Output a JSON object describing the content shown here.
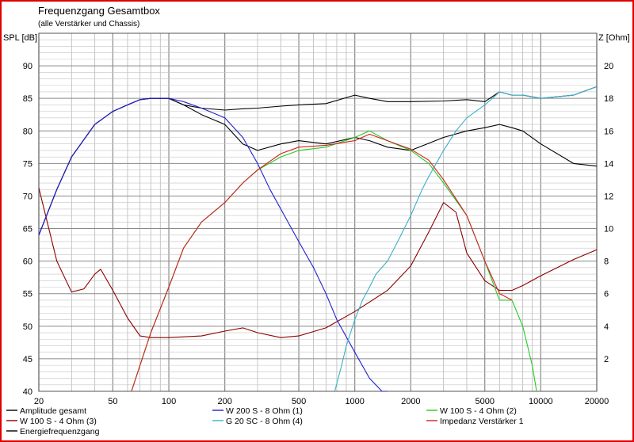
{
  "chart_data": {
    "type": "line",
    "title": "Frequenzgang Gesamtbox",
    "subtitle": "(alle Verstärker und Chassis)",
    "ylabel_left": "SPL [dB]",
    "ylabel_right": "Z [Ohm]",
    "x_scale": "log",
    "xlim": [
      20,
      20000
    ],
    "ylim_left": [
      40,
      95
    ],
    "ylim_right": [
      0,
      22
    ],
    "x_ticks": [
      20,
      50,
      100,
      200,
      500,
      1000,
      2000,
      5000,
      10000,
      20000
    ],
    "x_tick_labels": [
      "20",
      "50",
      "100",
      "200",
      "500",
      "1000",
      "2000",
      "5000",
      "10000",
      "20000"
    ],
    "y_left_ticks": [
      40,
      45,
      50,
      55,
      60,
      65,
      70,
      75,
      80,
      85,
      90
    ],
    "y_left_tick_labels": [
      "40",
      "45",
      "50",
      "55",
      "60",
      "65",
      "70",
      "75",
      "80",
      "85",
      "90"
    ],
    "y_right_ticks": [
      2,
      4,
      6,
      8,
      10,
      12,
      14,
      16,
      18,
      20
    ],
    "y_right_tick_labels": [
      "2",
      "4",
      "6",
      "8",
      "10",
      "12",
      "14",
      "16",
      "18",
      "20"
    ],
    "grid": true,
    "series": [
      {
        "name": "Amplitude gesamt",
        "color": "#000000",
        "axis": "left",
        "x": [
          20,
          25,
          30,
          40,
          50,
          60,
          70,
          80,
          100,
          120,
          150,
          200,
          250,
          300,
          400,
          500,
          700,
          1000,
          1200,
          1500,
          2000,
          3000,
          4000,
          5000,
          6000,
          7000,
          8000,
          10000,
          15000,
          20000
        ],
        "y": [
          64,
          71,
          76,
          81,
          83,
          84,
          84.8,
          85,
          85,
          84,
          83.5,
          83.2,
          83.4,
          83.5,
          83.8,
          84,
          84.2,
          85.5,
          85,
          84.5,
          84.5,
          84.6,
          84.8,
          84.5,
          86,
          85.5,
          85.5,
          85,
          85.5,
          86.8
        ]
      },
      {
        "name": "W 100 S - 4 Ohm (3)",
        "color": "#8b0000",
        "axis": "right",
        "x": [
          20,
          25,
          30,
          35,
          40,
          43,
          50,
          60,
          70,
          80,
          100,
          150,
          200,
          250,
          300,
          400,
          500,
          700,
          1000,
          1500,
          2000,
          2500,
          3000,
          3500,
          4000,
          5000,
          6000,
          7000,
          8000,
          10000,
          15000,
          20000
        ],
        "y": [
          12.5,
          8,
          6.1,
          6.3,
          7.2,
          7.5,
          6.2,
          4.5,
          3.4,
          3.3,
          3.3,
          3.4,
          3.7,
          3.9,
          3.6,
          3.3,
          3.4,
          3.9,
          4.9,
          6.2,
          7.7,
          9.8,
          11.6,
          11,
          8.5,
          6.8,
          6.2,
          6.2,
          6.5,
          7.1,
          8.1,
          8.7
        ]
      },
      {
        "name": "Energiefrequenzgang",
        "color": "#000000",
        "axis": "left",
        "x": [
          20,
          25,
          30,
          40,
          50,
          60,
          70,
          80,
          100,
          120,
          150,
          200,
          250,
          300,
          400,
          500,
          700,
          1000,
          1200,
          1500,
          2000,
          3000,
          4000,
          5000,
          6000,
          7000,
          8000,
          10000,
          15000,
          20000
        ],
        "y": [
          64,
          71,
          76,
          81,
          83,
          84,
          84.8,
          85,
          85,
          84,
          82.5,
          81,
          78,
          77,
          78,
          78.5,
          78,
          79,
          78.5,
          77.5,
          77,
          79,
          80,
          80.5,
          81,
          80.5,
          80,
          78,
          75,
          74.6
        ]
      },
      {
        "name": "W 200 S - 8 Ohm (1)",
        "color": "#1f1fcf",
        "axis": "left",
        "x": [
          20,
          25,
          30,
          40,
          50,
          60,
          70,
          80,
          100,
          120,
          150,
          200,
          250,
          300,
          350,
          400,
          500,
          600,
          700,
          800,
          1000,
          1200,
          1400,
          1500
        ],
        "y": [
          64,
          71,
          76,
          81,
          83,
          84,
          84.8,
          85,
          85,
          84.5,
          83.5,
          82,
          79,
          75,
          71,
          68,
          63,
          59,
          55,
          51,
          46,
          42,
          40,
          39.5
        ]
      },
      {
        "name": "G 20 SC - 8 Ohm (4)",
        "color": "#3ab0c8",
        "axis": "left",
        "x": [
          780,
          850,
          900,
          1000,
          1100,
          1200,
          1300,
          1500,
          1700,
          2000,
          2300,
          2500,
          3000,
          3500,
          4000,
          5000,
          5500,
          6000,
          7000,
          8000,
          10000,
          15000,
          20000
        ],
        "y": [
          40,
          44,
          47,
          51,
          54,
          56,
          58,
          60,
          63,
          67,
          71,
          73,
          77,
          80,
          82,
          84,
          85,
          86,
          85.5,
          85.5,
          85,
          85.5,
          86.8
        ]
      },
      {
        "name": "W 100 S - 4 Ohm (2)",
        "color": "#22cc22",
        "axis": "left",
        "x": [
          63,
          70,
          80,
          100,
          120,
          150,
          200,
          250,
          300,
          400,
          500,
          700,
          1000,
          1200,
          1500,
          2000,
          2500,
          3000,
          4000,
          5000,
          6000,
          7000,
          8000,
          9000,
          9500
        ],
        "y": [
          40,
          44,
          49,
          56,
          62,
          66,
          69,
          72,
          74,
          76,
          77,
          77.5,
          79,
          80,
          78.5,
          77,
          75,
          72,
          67,
          60,
          54,
          54,
          50,
          44,
          40
        ]
      },
      {
        "name": "Impedanz Verstärker 1",
        "color": "#d02020",
        "axis": "left",
        "x": [
          63,
          70,
          80,
          100,
          120,
          150,
          200,
          250,
          300,
          400,
          500,
          700,
          1000,
          1200,
          1500,
          2000,
          2500,
          3000,
          4000,
          5000,
          6000,
          7000
        ],
        "y": [
          40,
          44,
          49,
          56,
          62,
          66,
          69,
          72,
          74,
          76.5,
          77.5,
          77.8,
          78.5,
          79.5,
          78.5,
          77.2,
          75.5,
          72.5,
          67,
          60,
          55,
          54
        ]
      }
    ],
    "legend": {
      "placement": "bottom",
      "entries": [
        {
          "label": "Amplitude gesamt",
          "color": "#000000"
        },
        {
          "label": "W 200 S - 8 Ohm (1)",
          "color": "#1f1fcf"
        },
        {
          "label": "W 100 S - 4 Ohm (2)",
          "color": "#22cc22"
        },
        {
          "label": "W 100 S - 4 Ohm (3)",
          "color": "#8b0000"
        },
        {
          "label": "G 20 SC - 8 Ohm (4)",
          "color": "#3ab0c8"
        },
        {
          "label": "Impedanz Verstärker 1",
          "color": "#d02020"
        },
        {
          "label": "Energiefrequenzgang",
          "color": "#000000"
        }
      ]
    }
  }
}
